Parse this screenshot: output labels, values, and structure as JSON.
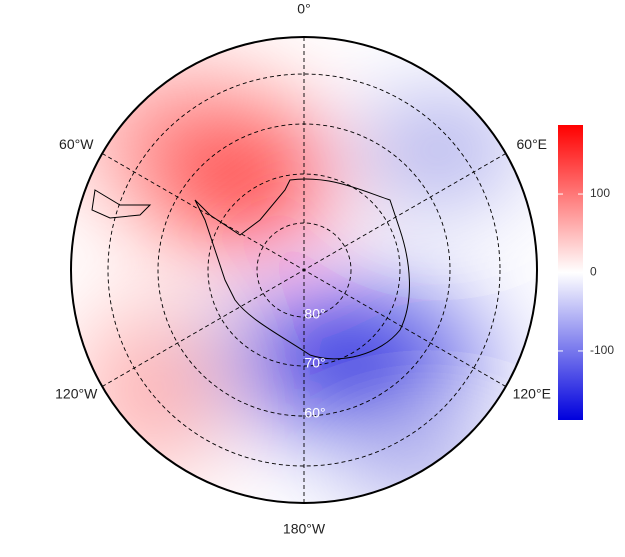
{
  "map": {
    "longitude_labels": [
      "0°",
      "60°E",
      "120°E",
      "180°W",
      "120°W",
      "60°W"
    ],
    "latitude_labels": [
      "80°",
      "70°",
      "60°"
    ],
    "colorbar": {
      "lim": [
        -188,
        188
      ],
      "ticks": [
        -100,
        0,
        100
      ],
      "low_color": "#0000dd",
      "mid_color": "#ffffff",
      "high_color": "#ff0000"
    }
  }
}
